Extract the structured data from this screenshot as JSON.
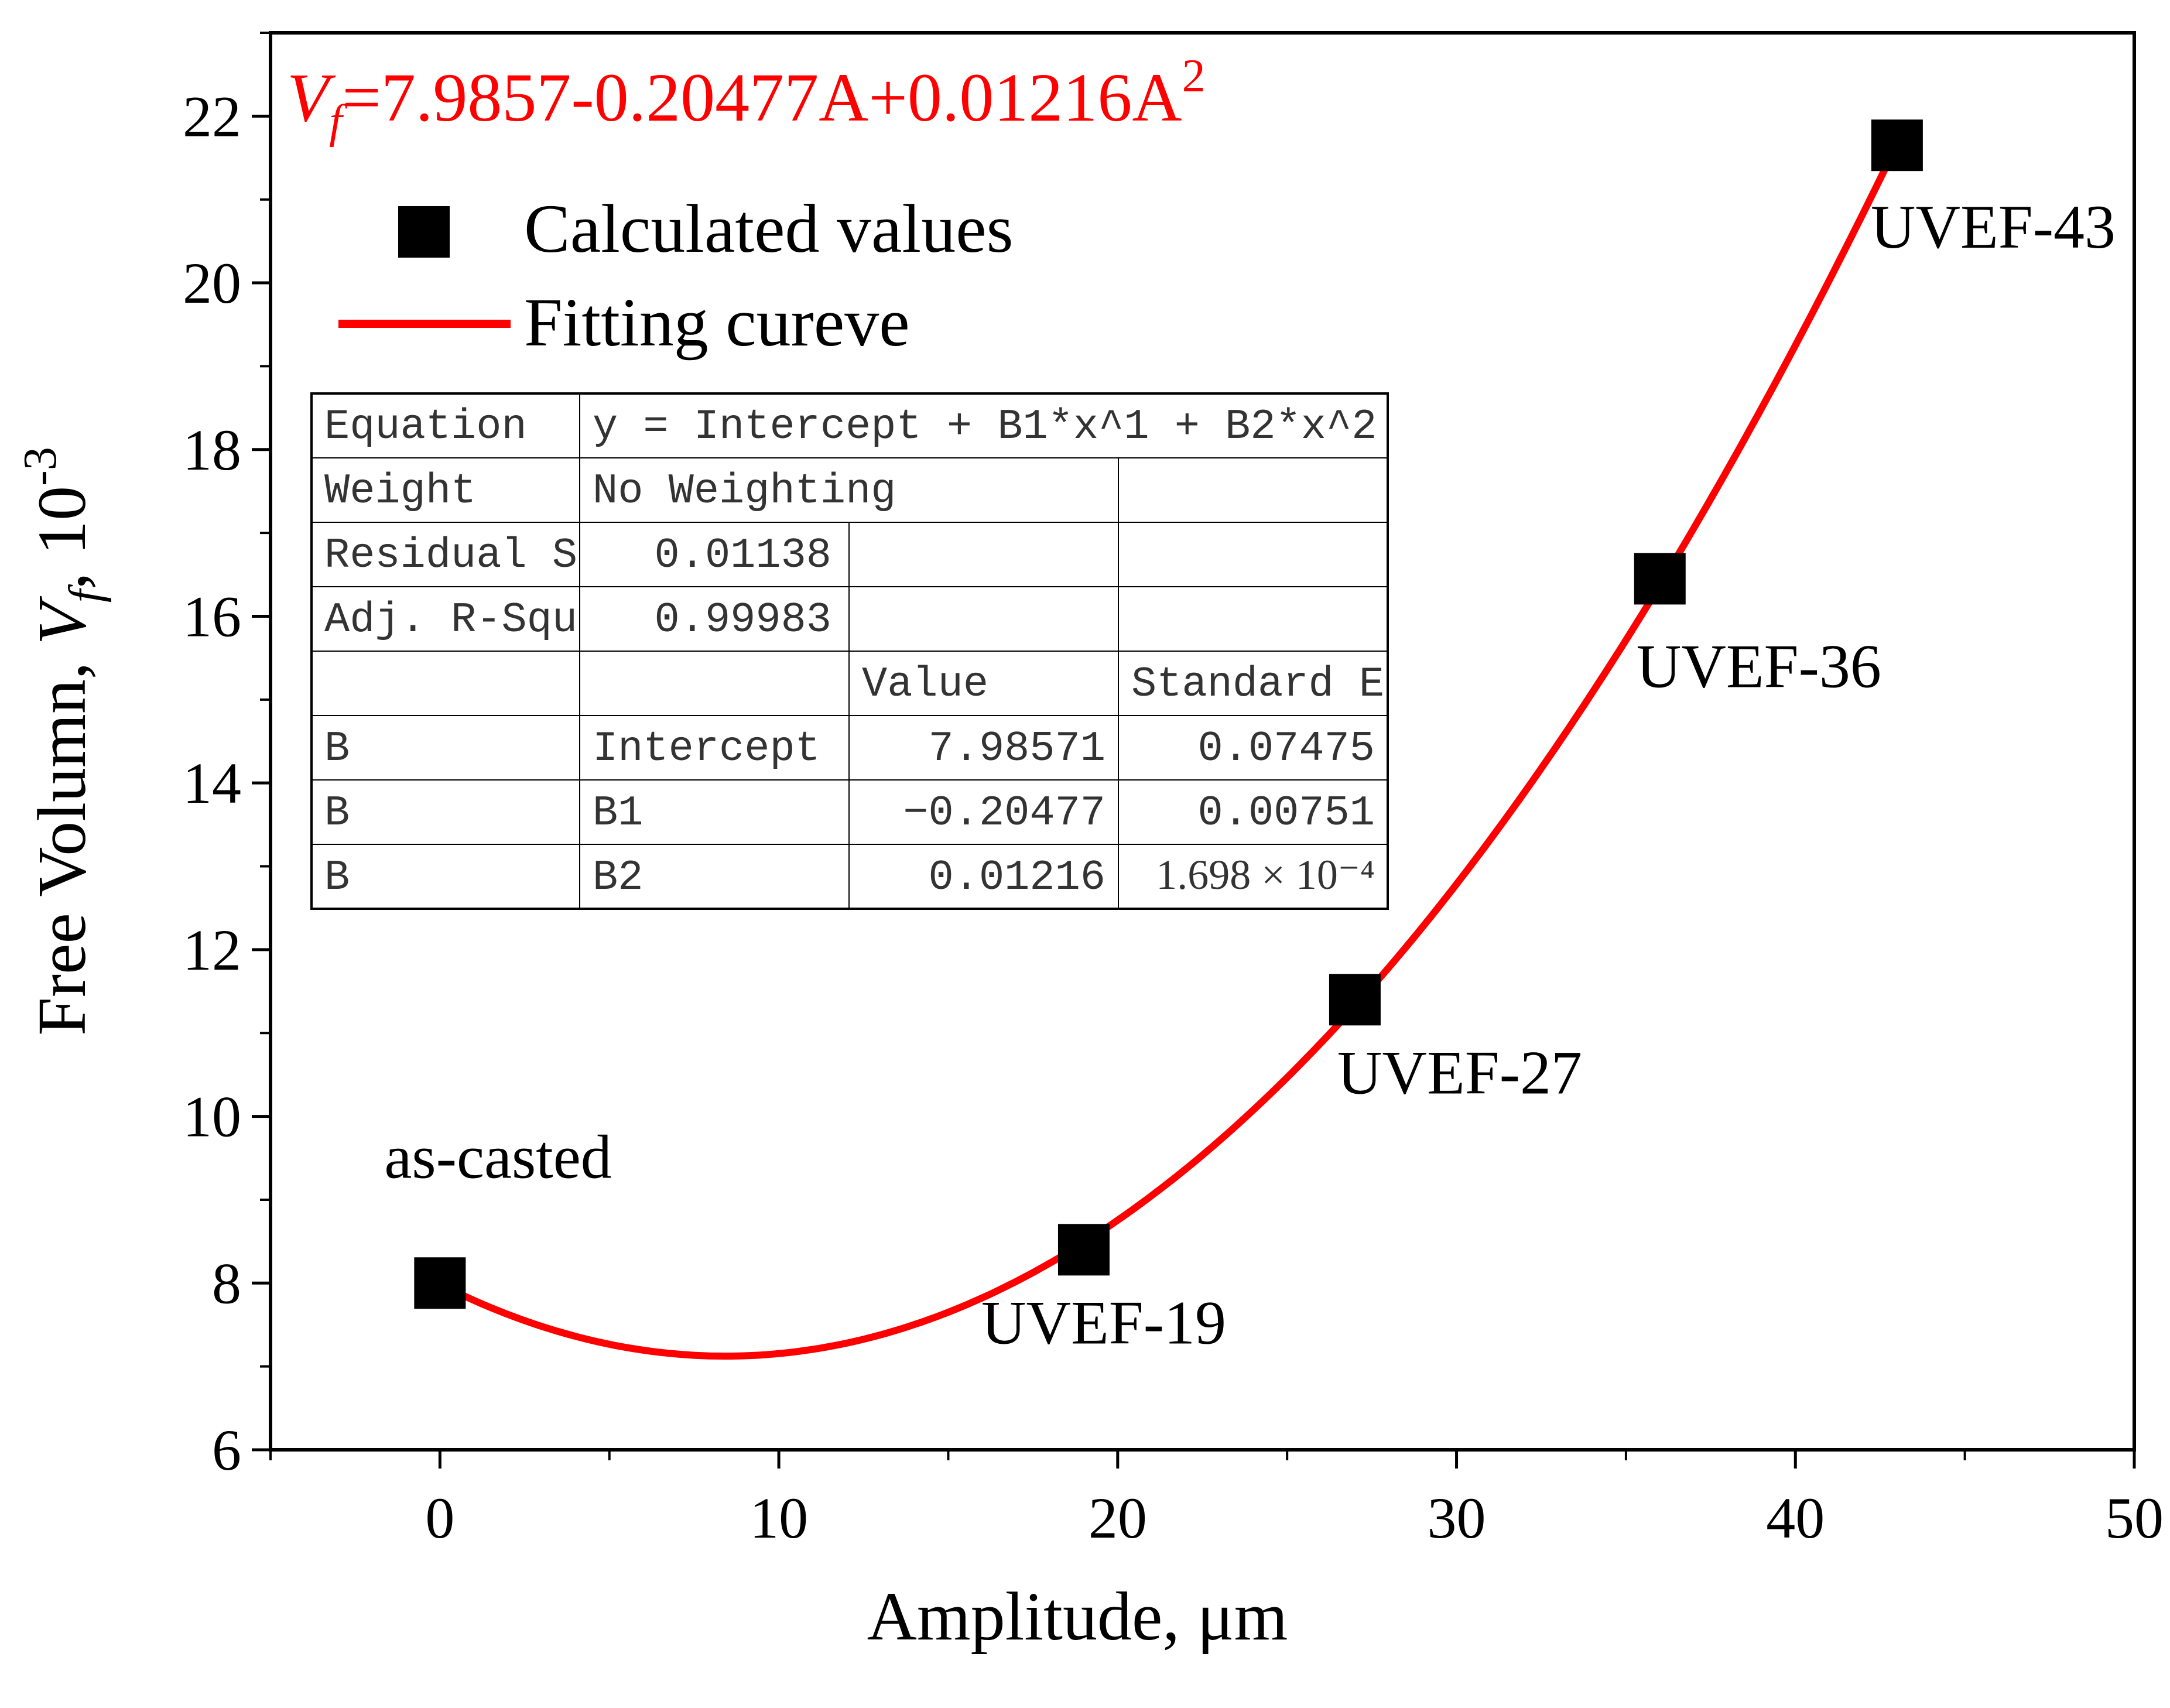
{
  "chart_data": {
    "type": "scatter",
    "title": "",
    "xlabel": "Amplitude, μm",
    "ylabel": {
      "prefix": "Free Volumn, ",
      "symbol": "V",
      "subscript": "f",
      "suffix": ", 10",
      "exponent": "-3"
    },
    "xlim": [
      -5,
      50
    ],
    "ylim": [
      6,
      23
    ],
    "x_ticks": [
      0,
      10,
      20,
      30,
      40,
      50
    ],
    "y_ticks": [
      6,
      8,
      10,
      12,
      14,
      16,
      18,
      20,
      22
    ],
    "grid": false,
    "equation": {
      "symbol": "V",
      "subscript": "f",
      "body": "=7.9857-0.20477A+0.01216A",
      "exponent": "2",
      "color": "#ff0000"
    },
    "series": [
      {
        "name": "Calculated values",
        "kind": "markers",
        "marker": "square",
        "color": "#000000",
        "points": [
          {
            "x": 0,
            "y": 8.0,
            "label": "as-casted"
          },
          {
            "x": 19,
            "y": 8.4,
            "label": "UVEF-19"
          },
          {
            "x": 27,
            "y": 11.4,
            "label": "UVEF-27"
          },
          {
            "x": 36,
            "y": 16.45,
            "label": "UVEF-36"
          },
          {
            "x": 43,
            "y": 21.65,
            "label": "UVEF-43"
          }
        ]
      },
      {
        "name": "Fitting cureve",
        "kind": "line",
        "color": "#ff0000",
        "model": {
          "intercept": 7.98571,
          "b1": -0.20477,
          "b2": 0.01216
        },
        "x_range": [
          0,
          43
        ]
      }
    ],
    "legend": {
      "position": "top-left",
      "entries": [
        "Calculated values",
        "Fitting cureve"
      ]
    },
    "fit_table": {
      "rows": [
        [
          "Equation",
          "y = Intercept + B1*x^1 + B2*x^2",
          "",
          ""
        ],
        [
          "Weight",
          "No Weighting",
          "",
          ""
        ],
        [
          "Residual S",
          "0.01138",
          "",
          ""
        ],
        [
          "Adj. R-Squ",
          "0.99983",
          "",
          ""
        ],
        [
          "",
          "",
          "Value",
          "Standard E"
        ],
        [
          "B",
          "Intercept",
          "7.98571",
          "0.07475"
        ],
        [
          "B",
          "B1",
          "-0.20477",
          "0.00751"
        ],
        [
          "B",
          "B2",
          "0.01216",
          "1.698 × 10⁻⁴"
        ]
      ]
    }
  }
}
